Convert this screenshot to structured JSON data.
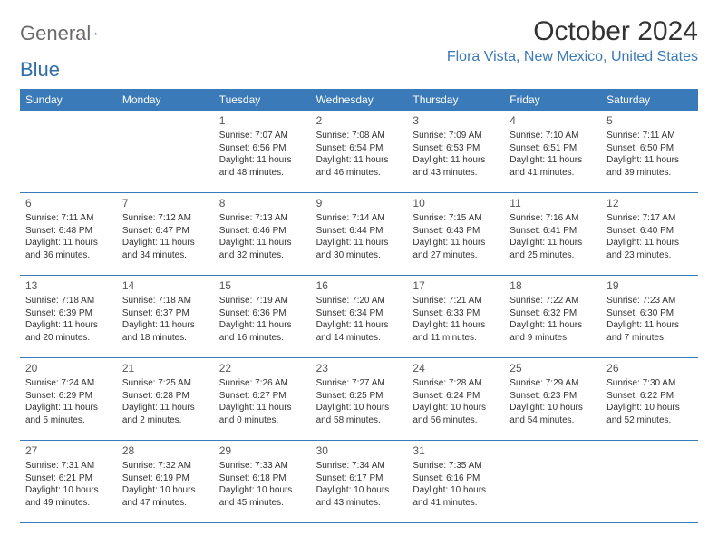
{
  "logo": {
    "text1": "General",
    "text2": "Blue"
  },
  "title": "October 2024",
  "location": "Flora Vista, New Mexico, United States",
  "colors": {
    "header_bg": "#3a7ab8",
    "header_text": "#ffffff",
    "border": "#3a7ab8",
    "text": "#333333",
    "location_color": "#3a7ab8",
    "logo_gray": "#6a6a6a",
    "logo_blue": "#2f6fa8",
    "background": "#ffffff"
  },
  "weekdays": [
    "Sunday",
    "Monday",
    "Tuesday",
    "Wednesday",
    "Thursday",
    "Friday",
    "Saturday"
  ],
  "days": [
    {
      "num": "",
      "sunrise": "",
      "sunset": "",
      "daylight": ""
    },
    {
      "num": "",
      "sunrise": "",
      "sunset": "",
      "daylight": ""
    },
    {
      "num": "1",
      "sunrise": "Sunrise: 7:07 AM",
      "sunset": "Sunset: 6:56 PM",
      "daylight": "Daylight: 11 hours and 48 minutes."
    },
    {
      "num": "2",
      "sunrise": "Sunrise: 7:08 AM",
      "sunset": "Sunset: 6:54 PM",
      "daylight": "Daylight: 11 hours and 46 minutes."
    },
    {
      "num": "3",
      "sunrise": "Sunrise: 7:09 AM",
      "sunset": "Sunset: 6:53 PM",
      "daylight": "Daylight: 11 hours and 43 minutes."
    },
    {
      "num": "4",
      "sunrise": "Sunrise: 7:10 AM",
      "sunset": "Sunset: 6:51 PM",
      "daylight": "Daylight: 11 hours and 41 minutes."
    },
    {
      "num": "5",
      "sunrise": "Sunrise: 7:11 AM",
      "sunset": "Sunset: 6:50 PM",
      "daylight": "Daylight: 11 hours and 39 minutes."
    },
    {
      "num": "6",
      "sunrise": "Sunrise: 7:11 AM",
      "sunset": "Sunset: 6:48 PM",
      "daylight": "Daylight: 11 hours and 36 minutes."
    },
    {
      "num": "7",
      "sunrise": "Sunrise: 7:12 AM",
      "sunset": "Sunset: 6:47 PM",
      "daylight": "Daylight: 11 hours and 34 minutes."
    },
    {
      "num": "8",
      "sunrise": "Sunrise: 7:13 AM",
      "sunset": "Sunset: 6:46 PM",
      "daylight": "Daylight: 11 hours and 32 minutes."
    },
    {
      "num": "9",
      "sunrise": "Sunrise: 7:14 AM",
      "sunset": "Sunset: 6:44 PM",
      "daylight": "Daylight: 11 hours and 30 minutes."
    },
    {
      "num": "10",
      "sunrise": "Sunrise: 7:15 AM",
      "sunset": "Sunset: 6:43 PM",
      "daylight": "Daylight: 11 hours and 27 minutes."
    },
    {
      "num": "11",
      "sunrise": "Sunrise: 7:16 AM",
      "sunset": "Sunset: 6:41 PM",
      "daylight": "Daylight: 11 hours and 25 minutes."
    },
    {
      "num": "12",
      "sunrise": "Sunrise: 7:17 AM",
      "sunset": "Sunset: 6:40 PM",
      "daylight": "Daylight: 11 hours and 23 minutes."
    },
    {
      "num": "13",
      "sunrise": "Sunrise: 7:18 AM",
      "sunset": "Sunset: 6:39 PM",
      "daylight": "Daylight: 11 hours and 20 minutes."
    },
    {
      "num": "14",
      "sunrise": "Sunrise: 7:18 AM",
      "sunset": "Sunset: 6:37 PM",
      "daylight": "Daylight: 11 hours and 18 minutes."
    },
    {
      "num": "15",
      "sunrise": "Sunrise: 7:19 AM",
      "sunset": "Sunset: 6:36 PM",
      "daylight": "Daylight: 11 hours and 16 minutes."
    },
    {
      "num": "16",
      "sunrise": "Sunrise: 7:20 AM",
      "sunset": "Sunset: 6:34 PM",
      "daylight": "Daylight: 11 hours and 14 minutes."
    },
    {
      "num": "17",
      "sunrise": "Sunrise: 7:21 AM",
      "sunset": "Sunset: 6:33 PM",
      "daylight": "Daylight: 11 hours and 11 minutes."
    },
    {
      "num": "18",
      "sunrise": "Sunrise: 7:22 AM",
      "sunset": "Sunset: 6:32 PM",
      "daylight": "Daylight: 11 hours and 9 minutes."
    },
    {
      "num": "19",
      "sunrise": "Sunrise: 7:23 AM",
      "sunset": "Sunset: 6:30 PM",
      "daylight": "Daylight: 11 hours and 7 minutes."
    },
    {
      "num": "20",
      "sunrise": "Sunrise: 7:24 AM",
      "sunset": "Sunset: 6:29 PM",
      "daylight": "Daylight: 11 hours and 5 minutes."
    },
    {
      "num": "21",
      "sunrise": "Sunrise: 7:25 AM",
      "sunset": "Sunset: 6:28 PM",
      "daylight": "Daylight: 11 hours and 2 minutes."
    },
    {
      "num": "22",
      "sunrise": "Sunrise: 7:26 AM",
      "sunset": "Sunset: 6:27 PM",
      "daylight": "Daylight: 11 hours and 0 minutes."
    },
    {
      "num": "23",
      "sunrise": "Sunrise: 7:27 AM",
      "sunset": "Sunset: 6:25 PM",
      "daylight": "Daylight: 10 hours and 58 minutes."
    },
    {
      "num": "24",
      "sunrise": "Sunrise: 7:28 AM",
      "sunset": "Sunset: 6:24 PM",
      "daylight": "Daylight: 10 hours and 56 minutes."
    },
    {
      "num": "25",
      "sunrise": "Sunrise: 7:29 AM",
      "sunset": "Sunset: 6:23 PM",
      "daylight": "Daylight: 10 hours and 54 minutes."
    },
    {
      "num": "26",
      "sunrise": "Sunrise: 7:30 AM",
      "sunset": "Sunset: 6:22 PM",
      "daylight": "Daylight: 10 hours and 52 minutes."
    },
    {
      "num": "27",
      "sunrise": "Sunrise: 7:31 AM",
      "sunset": "Sunset: 6:21 PM",
      "daylight": "Daylight: 10 hours and 49 minutes."
    },
    {
      "num": "28",
      "sunrise": "Sunrise: 7:32 AM",
      "sunset": "Sunset: 6:19 PM",
      "daylight": "Daylight: 10 hours and 47 minutes."
    },
    {
      "num": "29",
      "sunrise": "Sunrise: 7:33 AM",
      "sunset": "Sunset: 6:18 PM",
      "daylight": "Daylight: 10 hours and 45 minutes."
    },
    {
      "num": "30",
      "sunrise": "Sunrise: 7:34 AM",
      "sunset": "Sunset: 6:17 PM",
      "daylight": "Daylight: 10 hours and 43 minutes."
    },
    {
      "num": "31",
      "sunrise": "Sunrise: 7:35 AM",
      "sunset": "Sunset: 6:16 PM",
      "daylight": "Daylight: 10 hours and 41 minutes."
    },
    {
      "num": "",
      "sunrise": "",
      "sunset": "",
      "daylight": ""
    },
    {
      "num": "",
      "sunrise": "",
      "sunset": "",
      "daylight": ""
    }
  ]
}
